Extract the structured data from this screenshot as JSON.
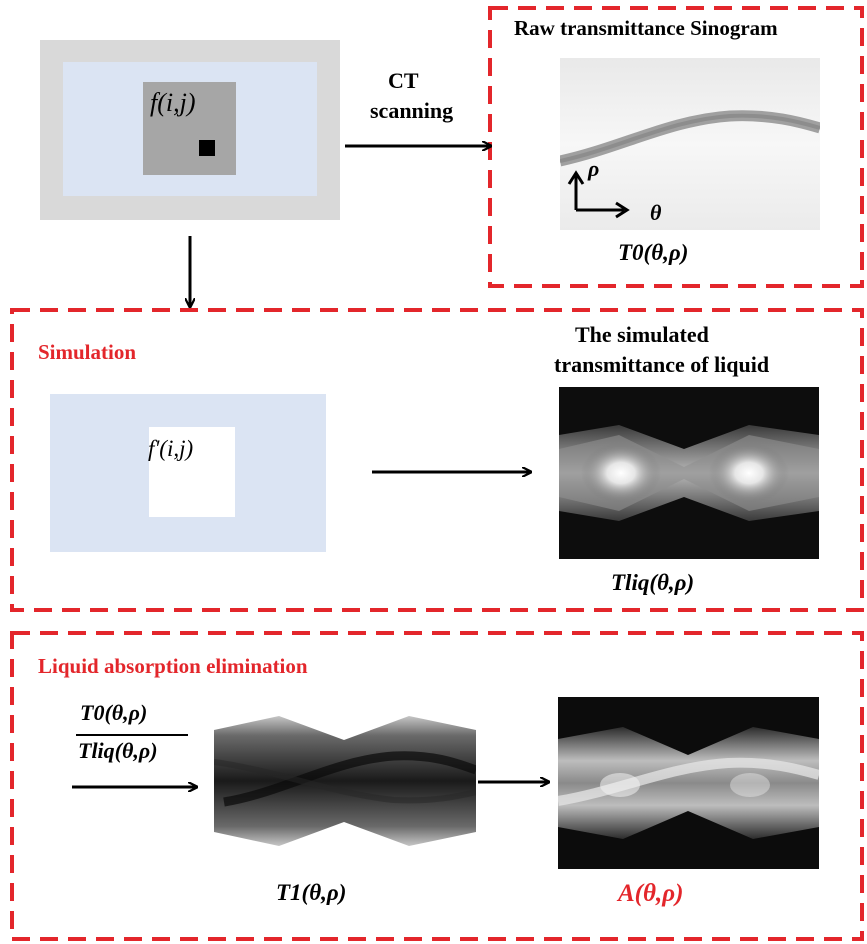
{
  "top": {
    "object_label": "f(i,j)",
    "ct_label_line1": "CT",
    "ct_label_line2": "scanning",
    "sinogram_title": "Raw transmittance Sinogram",
    "axis_rho": "ρ",
    "axis_theta": "θ",
    "sinogram_formula": "T0(θ,ρ)"
  },
  "simulation": {
    "heading": "Simulation",
    "object_label": "f'(i,j)",
    "result_title_line1": "The simulated",
    "result_title_line2": "transmittance of liquid",
    "result_formula": "Tliq(θ,ρ)"
  },
  "elimination": {
    "heading": "Liquid absorption elimination",
    "ratio_numerator": "T0(θ,ρ)",
    "ratio_denominator": "Tliq(θ,ρ)",
    "intermediate_formula": "T1(θ,ρ)",
    "output_formula": "A(θ,ρ)"
  },
  "colors": {
    "dashed_border": "#e3262b",
    "red_text": "#e3262b",
    "outer_frame": "#d9d9d9",
    "inner_field": "#dbe4f3",
    "object_square": "#a6a6a6"
  }
}
